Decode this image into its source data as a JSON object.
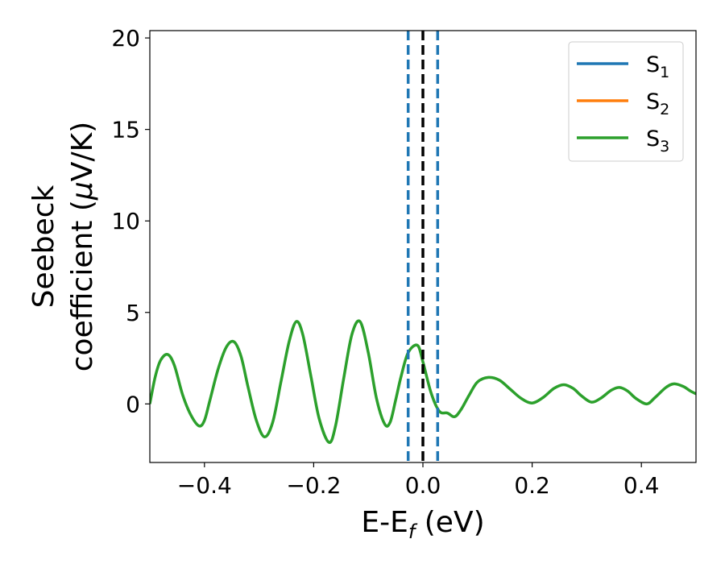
{
  "chart_data": {
    "type": "line",
    "xlabel": {
      "main": "E-E",
      "sub": "f",
      "suffix": " (eV)"
    },
    "ylabel": {
      "line1": "Seebeck",
      "line2": "coefficient  (",
      "mu": "μ",
      "line2_end": "V/K)"
    },
    "xlim": [
      -0.5,
      0.5
    ],
    "ylim": [
      -3.2,
      20.4
    ],
    "xticks": [
      -0.4,
      -0.2,
      0.0,
      0.2,
      0.4
    ],
    "xtick_labels": [
      "−0.4",
      "−0.2",
      "0.0",
      "0.2",
      "0.4"
    ],
    "yticks": [
      0,
      5,
      10,
      15,
      20
    ],
    "ytick_labels": [
      "0",
      "5",
      "10",
      "15",
      "20"
    ],
    "grid": false,
    "legend": {
      "placement": "top-right",
      "entries": [
        {
          "base": "S",
          "sub": "1",
          "color": "#1f77b4"
        },
        {
          "base": "S",
          "sub": "2",
          "color": "#ff7f0e"
        },
        {
          "base": "S",
          "sub": "3",
          "color": "#2ca02c"
        }
      ]
    },
    "vlines": [
      {
        "x": -0.027,
        "color": "#1f77b4",
        "style": "dashed"
      },
      {
        "x": 0.0,
        "color": "#000000",
        "style": "dashed"
      },
      {
        "x": 0.027,
        "color": "#1f77b4",
        "style": "dashed"
      }
    ],
    "series": [
      {
        "name": "S3",
        "color": "#2ca02c",
        "x": [
          -0.5,
          -0.49,
          -0.48,
          -0.467,
          -0.455,
          -0.44,
          -0.425,
          -0.41,
          -0.4,
          -0.39,
          -0.375,
          -0.36,
          -0.346,
          -0.333,
          -0.32,
          -0.305,
          -0.29,
          -0.275,
          -0.26,
          -0.245,
          -0.232,
          -0.22,
          -0.205,
          -0.19,
          -0.172,
          -0.16,
          -0.145,
          -0.13,
          -0.115,
          -0.1,
          -0.085,
          -0.07,
          -0.06,
          -0.05,
          -0.04,
          -0.027,
          -0.01,
          0.0,
          0.015,
          0.03,
          0.045,
          0.058,
          0.07,
          0.085,
          0.1,
          0.12,
          0.14,
          0.16,
          0.18,
          0.2,
          0.22,
          0.24,
          0.258,
          0.275,
          0.29,
          0.308,
          0.325,
          0.345,
          0.36,
          0.375,
          0.39,
          0.41,
          0.425,
          0.445,
          0.46,
          0.477,
          0.49,
          0.5
        ],
        "y": [
          0.0,
          1.5,
          2.4,
          2.7,
          2.1,
          0.5,
          -0.6,
          -1.2,
          -0.9,
          0.2,
          1.9,
          3.1,
          3.4,
          2.6,
          0.9,
          -0.9,
          -1.8,
          -1.0,
          1.2,
          3.4,
          4.5,
          3.8,
          1.5,
          -0.8,
          -2.1,
          -1.2,
          1.4,
          3.8,
          4.5,
          2.8,
          0.3,
          -1.1,
          -1.0,
          0.2,
          1.5,
          2.8,
          3.2,
          2.3,
          0.6,
          -0.4,
          -0.5,
          -0.7,
          -0.3,
          0.5,
          1.2,
          1.45,
          1.3,
          0.8,
          0.3,
          0.05,
          0.35,
          0.85,
          1.05,
          0.85,
          0.45,
          0.1,
          0.3,
          0.75,
          0.9,
          0.7,
          0.3,
          0.0,
          0.35,
          0.9,
          1.1,
          0.95,
          0.7,
          0.55
        ]
      }
    ]
  }
}
